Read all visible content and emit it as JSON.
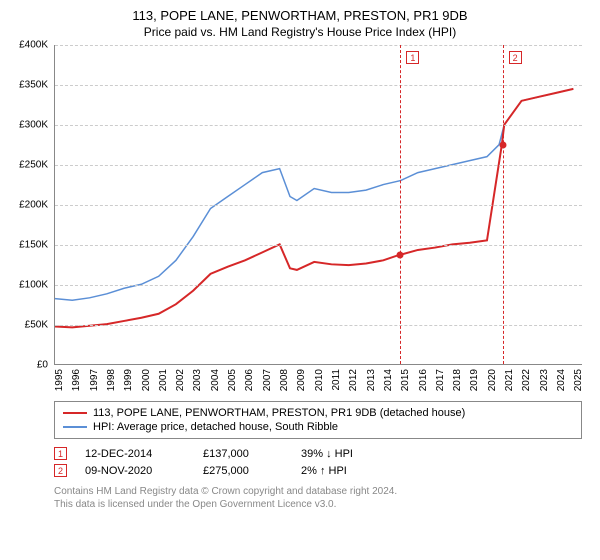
{
  "title": "113, POPE LANE, PENWORTHAM, PRESTON, PR1 9DB",
  "subtitle": "Price paid vs. HM Land Registry's House Price Index (HPI)",
  "chart": {
    "type": "line",
    "ylim": [
      0,
      400000
    ],
    "ytick_step": 50000,
    "y_ticks": [
      "£0",
      "£50K",
      "£100K",
      "£150K",
      "£200K",
      "£250K",
      "£300K",
      "£350K",
      "£400K"
    ],
    "x_years": [
      1995,
      1996,
      1997,
      1998,
      1999,
      2000,
      2001,
      2002,
      2003,
      2004,
      2005,
      2006,
      2007,
      2008,
      2009,
      2010,
      2011,
      2012,
      2013,
      2014,
      2015,
      2016,
      2017,
      2018,
      2019,
      2020,
      2021,
      2022,
      2023,
      2024,
      2025
    ],
    "xlim": [
      1995,
      2025.5
    ],
    "background_color": "#ffffff",
    "grid_color": "#cccccc",
    "series": [
      {
        "key": "hpi",
        "label": "HPI: Average price, detached house, South Ribble",
        "color": "#5b8fd6",
        "width": 1.5,
        "data": [
          [
            1995,
            82000
          ],
          [
            1996,
            80000
          ],
          [
            1997,
            83000
          ],
          [
            1998,
            88000
          ],
          [
            1999,
            95000
          ],
          [
            2000,
            100000
          ],
          [
            2001,
            110000
          ],
          [
            2002,
            130000
          ],
          [
            2003,
            160000
          ],
          [
            2004,
            195000
          ],
          [
            2005,
            210000
          ],
          [
            2006,
            225000
          ],
          [
            2007,
            240000
          ],
          [
            2008,
            245000
          ],
          [
            2008.6,
            210000
          ],
          [
            2009,
            205000
          ],
          [
            2010,
            220000
          ],
          [
            2011,
            215000
          ],
          [
            2012,
            215000
          ],
          [
            2013,
            218000
          ],
          [
            2014,
            225000
          ],
          [
            2015,
            230000
          ],
          [
            2016,
            240000
          ],
          [
            2017,
            245000
          ],
          [
            2018,
            250000
          ],
          [
            2019,
            255000
          ],
          [
            2020,
            260000
          ],
          [
            2020.7,
            275000
          ],
          [
            2021,
            300000
          ],
          [
            2022,
            330000
          ],
          [
            2023,
            335000
          ],
          [
            2024,
            340000
          ],
          [
            2025,
            345000
          ]
        ]
      },
      {
        "key": "property",
        "label": "113, POPE LANE, PENWORTHAM, PRESTON, PR1 9DB (detached house)",
        "color": "#d62728",
        "width": 2,
        "data": [
          [
            1995,
            47000
          ],
          [
            1996,
            46000
          ],
          [
            1997,
            48000
          ],
          [
            1998,
            50000
          ],
          [
            1999,
            54000
          ],
          [
            2000,
            58000
          ],
          [
            2001,
            63000
          ],
          [
            2002,
            75000
          ],
          [
            2003,
            92000
          ],
          [
            2004,
            113000
          ],
          [
            2005,
            122000
          ],
          [
            2006,
            130000
          ],
          [
            2007,
            140000
          ],
          [
            2008,
            150000
          ],
          [
            2008.6,
            120000
          ],
          [
            2009,
            118000
          ],
          [
            2010,
            128000
          ],
          [
            2011,
            125000
          ],
          [
            2012,
            124000
          ],
          [
            2013,
            126000
          ],
          [
            2014,
            130000
          ],
          [
            2014.95,
            137000
          ],
          [
            2015,
            137000
          ],
          [
            2016,
            143000
          ],
          [
            2017,
            146000
          ],
          [
            2018,
            150000
          ],
          [
            2019,
            152000
          ],
          [
            2020,
            155000
          ],
          [
            2020.86,
            275000
          ],
          [
            2021,
            300000
          ],
          [
            2022,
            330000
          ],
          [
            2023,
            335000
          ],
          [
            2024,
            340000
          ],
          [
            2025,
            345000
          ]
        ]
      }
    ],
    "events": [
      {
        "n": "1",
        "x": 2014.95,
        "price": 137000,
        "date": "12-DEC-2014",
        "price_label": "£137,000",
        "delta_pct": "39%",
        "delta_dir": "down",
        "delta_suffix": "HPI",
        "color": "#d62728"
      },
      {
        "n": "2",
        "x": 2020.86,
        "price": 275000,
        "date": "09-NOV-2020",
        "price_label": "£275,000",
        "delta_pct": "2%",
        "delta_dir": "up",
        "delta_suffix": "HPI",
        "color": "#d62728"
      }
    ]
  },
  "footer": {
    "line1": "Contains HM Land Registry data © Crown copyright and database right 2024.",
    "line2": "This data is licensed under the Open Government Licence v3.0."
  }
}
